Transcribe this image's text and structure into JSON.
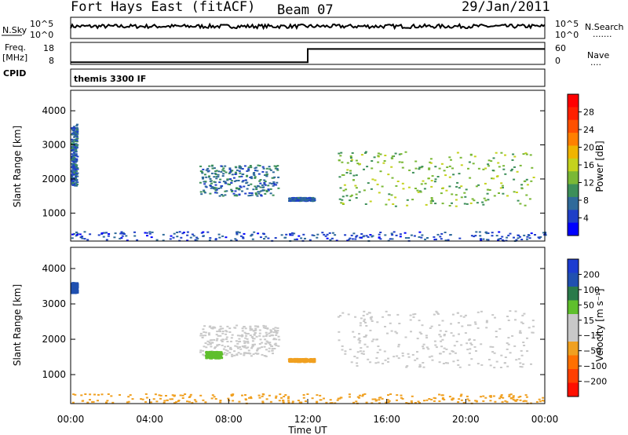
{
  "header": {
    "station": "Fort Hays East (fitACF)",
    "beam": "Beam 07",
    "date": "29/Jan/2011"
  },
  "left_labels": {
    "nsky": "N.Sky",
    "freq": "Freq.",
    "freq_unit": "[MHz]",
    "cpid": "CPID"
  },
  "right_labels": {
    "nsearch": "N.Search",
    "nsearch_dots": "·······",
    "nave": "Nave",
    "nave_dots": "····"
  },
  "noise_axis": {
    "top_label": "10^5",
    "bottom_label": "10^0"
  },
  "freq_axis": {
    "ticks": [
      "18",
      "8"
    ]
  },
  "nave_axis": {
    "ticks": [
      "60",
      "0"
    ]
  },
  "cpid_text": "themis 3300 IF",
  "colors": {
    "power": [
      "#0000ff",
      "#1f3fc8",
      "#2f6a9a",
      "#3d8f5a",
      "#7ab836",
      "#c4d21e",
      "#f0b400",
      "#ff8000",
      "#ff5000",
      "#ff2000",
      "#ff0000"
    ],
    "velocity": [
      "#1c3cd0",
      "#2050b0",
      "#2a7a4a",
      "#5fbf2c",
      "#c8c8c8",
      "#c8c8c8",
      "#f0a020",
      "#ff7000",
      "#ff4000",
      "#ff1000"
    ]
  },
  "chart_data": [
    {
      "type": "heatmap",
      "name": "power",
      "ylabel": "Slant Range [km]",
      "ylim": [
        180,
        4600
      ],
      "yticks": [
        "4000",
        "3000",
        "2000",
        "1000"
      ],
      "colorbar_label": "Power [dB]",
      "colorbar_ticks": [
        "28",
        "24",
        "20",
        "16",
        "12",
        "8",
        "4"
      ],
      "colorbar_range": [
        0,
        30
      ],
      "echo_regions": [
        {
          "t0": 0.0,
          "t1": 0.3,
          "r0": 1800,
          "r1": 3600,
          "value": 6
        },
        {
          "t0": 6.5,
          "t1": 10.5,
          "r0": 1500,
          "r1": 2400,
          "value": 7
        },
        {
          "t0": 11.0,
          "t1": 12.3,
          "r0": 1350,
          "r1": 1450,
          "value": 6
        },
        {
          "t0": 13.5,
          "t1": 23.4,
          "r0": 1200,
          "r1": 2800,
          "value": 12
        },
        {
          "t0": 0.0,
          "t1": 24.0,
          "r0": 180,
          "r1": 450,
          "value": 5
        }
      ]
    },
    {
      "type": "heatmap",
      "name": "velocity",
      "ylabel": "Slant Range [km]",
      "xlabel": "Time UT",
      "xticks": [
        "00:00",
        "04:00",
        "08:00",
        "12:00",
        "16:00",
        "20:00",
        "00:00"
      ],
      "xlim": [
        0,
        24
      ],
      "ylim": [
        180,
        4600
      ],
      "yticks": [
        "4000",
        "3000",
        "2000",
        "1000"
      ],
      "colorbar_label": "Velocity [m s⁻¹]",
      "colorbar_ticks": [
        "200",
        "100",
        "50",
        "15",
        "−15",
        "−50",
        "−100",
        "−200"
      ],
      "echo_regions": [
        {
          "t0": 0.0,
          "t1": 0.3,
          "r0": 3300,
          "r1": 3600,
          "value": 180
        },
        {
          "t0": 6.5,
          "t1": 10.5,
          "r0": 1500,
          "r1": 2400,
          "value": 10
        },
        {
          "t0": 6.8,
          "t1": 7.6,
          "r0": 1450,
          "r1": 1650,
          "value": 40
        },
        {
          "t0": 11.0,
          "t1": 12.3,
          "r0": 1350,
          "r1": 1450,
          "value": -30
        },
        {
          "t0": 13.5,
          "t1": 23.4,
          "r0": 1200,
          "r1": 2800,
          "value": 0
        },
        {
          "t0": 0.0,
          "t1": 24.0,
          "r0": 180,
          "r1": 450,
          "value": -40
        }
      ]
    },
    {
      "type": "line",
      "name": "frequency",
      "x": [
        0,
        12.0,
        12.0,
        24
      ],
      "y": [
        9,
        9,
        15,
        15
      ],
      "ylim": [
        8,
        18
      ]
    },
    {
      "type": "line",
      "name": "nave",
      "x": [
        0,
        12.0,
        12.0,
        24
      ],
      "y": [
        2,
        2,
        38,
        38
      ],
      "ylim": [
        0,
        60
      ]
    }
  ]
}
